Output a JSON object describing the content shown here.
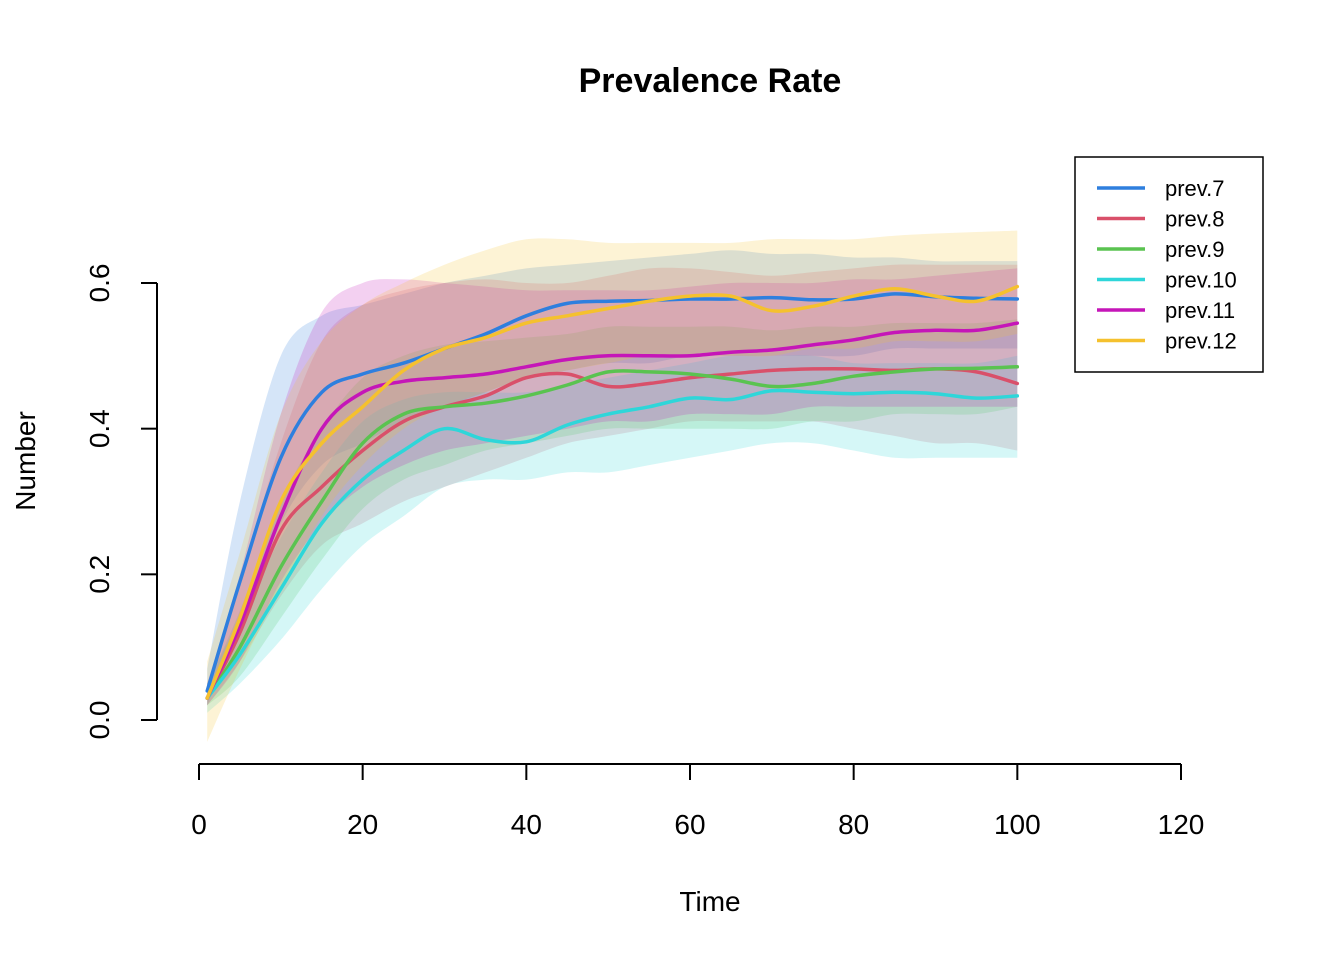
{
  "chart_data": {
    "type": "area",
    "title": "Prevalence Rate",
    "xlabel": "Time",
    "ylabel": "Number",
    "xlim": [
      0,
      120
    ],
    "ylim": [
      0,
      0.6
    ],
    "x_ticks": [
      "0",
      "20",
      "40",
      "60",
      "80",
      "100",
      "120"
    ],
    "y_ticks": [
      "0.0",
      "0.2",
      "0.4",
      "0.6"
    ],
    "legend_position": "top-right",
    "grid": false,
    "x": [
      1,
      5,
      10,
      15,
      20,
      25,
      30,
      35,
      40,
      45,
      50,
      55,
      60,
      65,
      70,
      75,
      80,
      85,
      90,
      95,
      100
    ],
    "series": [
      {
        "name": "prev.7",
        "color": "#2e7fde",
        "values": [
          0.04,
          0.19,
          0.36,
          0.45,
          0.475,
          0.49,
          0.51,
          0.53,
          0.555,
          0.572,
          0.575,
          0.576,
          0.578,
          0.578,
          0.58,
          0.577,
          0.578,
          0.585,
          0.581,
          0.579,
          0.578
        ],
        "lower": [
          0.02,
          0.13,
          0.27,
          0.35,
          0.38,
          0.41,
          0.43,
          0.45,
          0.47,
          0.48,
          0.49,
          0.49,
          0.5,
          0.5,
          0.5,
          0.5,
          0.5,
          0.51,
          0.51,
          0.51,
          0.51
        ],
        "upper": [
          0.07,
          0.3,
          0.5,
          0.555,
          0.57,
          0.585,
          0.6,
          0.61,
          0.62,
          0.625,
          0.63,
          0.635,
          0.64,
          0.645,
          0.64,
          0.64,
          0.635,
          0.635,
          0.63,
          0.63,
          0.63
        ]
      },
      {
        "name": "prev.8",
        "color": "#d9506a",
        "values": [
          0.03,
          0.12,
          0.26,
          0.32,
          0.37,
          0.41,
          0.43,
          0.445,
          0.47,
          0.475,
          0.458,
          0.462,
          0.47,
          0.475,
          0.48,
          0.482,
          0.482,
          0.48,
          0.482,
          0.478,
          0.462
        ],
        "lower": [
          0.02,
          0.08,
          0.17,
          0.24,
          0.27,
          0.3,
          0.32,
          0.34,
          0.36,
          0.38,
          0.39,
          0.4,
          0.41,
          0.41,
          0.41,
          0.41,
          0.4,
          0.39,
          0.38,
          0.38,
          0.37
        ],
        "upper": [
          0.05,
          0.19,
          0.38,
          0.52,
          0.57,
          0.59,
          0.6,
          0.605,
          0.6,
          0.6,
          0.61,
          0.62,
          0.62,
          0.615,
          0.61,
          0.615,
          0.62,
          0.625,
          0.625,
          0.625,
          0.625
        ]
      },
      {
        "name": "prev.9",
        "color": "#5ac350",
        "values": [
          0.03,
          0.1,
          0.21,
          0.3,
          0.38,
          0.42,
          0.43,
          0.435,
          0.445,
          0.46,
          0.478,
          0.478,
          0.475,
          0.468,
          0.458,
          0.462,
          0.472,
          0.478,
          0.482,
          0.483,
          0.485
        ],
        "lower": [
          0.02,
          0.06,
          0.14,
          0.22,
          0.29,
          0.33,
          0.35,
          0.37,
          0.38,
          0.39,
          0.4,
          0.4,
          0.4,
          0.4,
          0.4,
          0.41,
          0.41,
          0.42,
          0.42,
          0.42,
          0.43
        ],
        "upper": [
          0.05,
          0.15,
          0.3,
          0.4,
          0.47,
          0.5,
          0.515,
          0.52,
          0.525,
          0.53,
          0.54,
          0.54,
          0.54,
          0.54,
          0.535,
          0.54,
          0.54,
          0.545,
          0.545,
          0.545,
          0.55
        ]
      },
      {
        "name": "prev.10",
        "color": "#2ed6d9",
        "values": [
          0.03,
          0.09,
          0.18,
          0.27,
          0.33,
          0.37,
          0.4,
          0.385,
          0.382,
          0.405,
          0.42,
          0.43,
          0.442,
          0.44,
          0.452,
          0.45,
          0.448,
          0.45,
          0.448,
          0.442,
          0.445
        ],
        "lower": [
          0.01,
          0.05,
          0.11,
          0.18,
          0.24,
          0.28,
          0.32,
          0.33,
          0.33,
          0.34,
          0.34,
          0.35,
          0.36,
          0.37,
          0.38,
          0.38,
          0.37,
          0.36,
          0.36,
          0.36,
          0.36
        ],
        "upper": [
          0.05,
          0.14,
          0.25,
          0.34,
          0.41,
          0.44,
          0.45,
          0.45,
          0.45,
          0.46,
          0.47,
          0.48,
          0.49,
          0.5,
          0.5,
          0.5,
          0.49,
          0.49,
          0.49,
          0.49,
          0.5
        ]
      },
      {
        "name": "prev.11",
        "color": "#c516b8",
        "values": [
          0.03,
          0.13,
          0.28,
          0.4,
          0.45,
          0.465,
          0.47,
          0.475,
          0.485,
          0.495,
          0.5,
          0.5,
          0.5,
          0.505,
          0.508,
          0.515,
          0.522,
          0.532,
          0.535,
          0.535,
          0.545
        ],
        "lower": [
          0.02,
          0.08,
          0.19,
          0.27,
          0.32,
          0.35,
          0.37,
          0.38,
          0.39,
          0.4,
          0.41,
          0.41,
          0.42,
          0.42,
          0.42,
          0.43,
          0.43,
          0.43,
          0.43,
          0.43,
          0.43
        ],
        "upper": [
          0.05,
          0.2,
          0.42,
          0.56,
          0.6,
          0.605,
          0.6,
          0.595,
          0.59,
          0.59,
          0.59,
          0.59,
          0.595,
          0.6,
          0.6,
          0.6,
          0.605,
          0.605,
          0.61,
          0.615,
          0.62
        ]
      },
      {
        "name": "prev.12",
        "color": "#f5c12e",
        "values": [
          0.03,
          0.14,
          0.3,
          0.38,
          0.43,
          0.48,
          0.51,
          0.525,
          0.545,
          0.555,
          0.565,
          0.575,
          0.582,
          0.582,
          0.562,
          0.568,
          0.582,
          0.592,
          0.582,
          0.575,
          0.595
        ],
        "lower": [
          -0.03,
          0.07,
          0.18,
          0.28,
          0.35,
          0.4,
          0.43,
          0.45,
          0.47,
          0.48,
          0.49,
          0.5,
          0.5,
          0.5,
          0.5,
          0.51,
          0.51,
          0.52,
          0.52,
          0.52,
          0.53
        ],
        "upper": [
          0.08,
          0.23,
          0.42,
          0.52,
          0.57,
          0.6,
          0.625,
          0.645,
          0.66,
          0.66,
          0.655,
          0.655,
          0.655,
          0.655,
          0.66,
          0.66,
          0.66,
          0.665,
          0.668,
          0.67,
          0.672
        ]
      }
    ]
  }
}
